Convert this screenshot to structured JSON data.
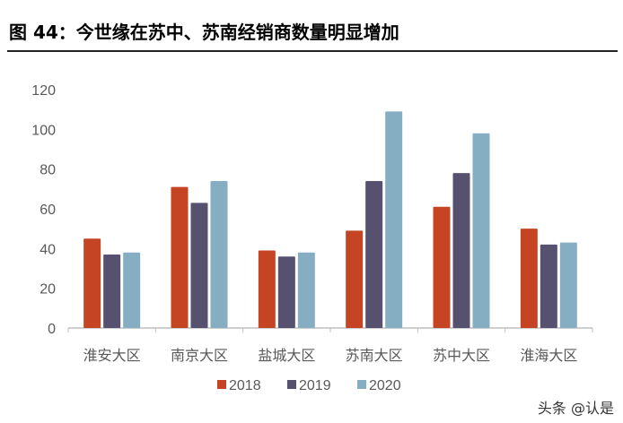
{
  "title": "图 44：今世缘在苏中、苏南经销商数量明显增加",
  "watermark": "头条 @认是",
  "chart_data": {
    "type": "bar",
    "categories": [
      "淮安大区",
      "南京大区",
      "盐城大区",
      "苏南大区",
      "苏中大区",
      "淮海大区"
    ],
    "series": [
      {
        "name": "2018",
        "color": "#C44424",
        "values": [
          45,
          71,
          39,
          49,
          61,
          50
        ]
      },
      {
        "name": "2019",
        "color": "#575170",
        "values": [
          37,
          63,
          36,
          74,
          78,
          42
        ]
      },
      {
        "name": "2020",
        "color": "#86AEC3",
        "values": [
          38,
          74,
          38,
          109,
          98,
          43
        ]
      }
    ],
    "ylim": [
      0,
      120
    ],
    "yticks": [
      0,
      20,
      40,
      60,
      80,
      100,
      120
    ],
    "grid": false,
    "legend": "bottom"
  }
}
